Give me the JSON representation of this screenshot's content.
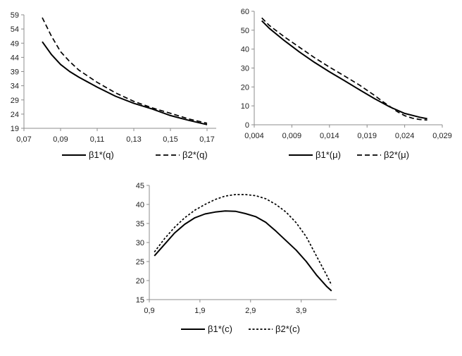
{
  "chart_data": [
    {
      "type": "line",
      "xlim": [
        0.07,
        0.175
      ],
      "ylim": [
        19,
        59
      ],
      "xticks": [
        {
          "value": 0.07,
          "label": "0,07"
        },
        {
          "value": 0.09,
          "label": "0,09"
        },
        {
          "value": 0.11,
          "label": "0,11"
        },
        {
          "value": 0.13,
          "label": "0,13"
        },
        {
          "value": 0.15,
          "label": "0,15"
        },
        {
          "value": 0.17,
          "label": "0,17"
        }
      ],
      "yticks": [
        {
          "value": 19,
          "label": "19"
        },
        {
          "value": 24,
          "label": "24"
        },
        {
          "value": 29,
          "label": "29"
        },
        {
          "value": 34,
          "label": "34"
        },
        {
          "value": 39,
          "label": "39"
        },
        {
          "value": 44,
          "label": "44"
        },
        {
          "value": 49,
          "label": "49"
        },
        {
          "value": 54,
          "label": "54"
        },
        {
          "value": 59,
          "label": "59"
        }
      ],
      "grid": false,
      "legend_position": "bottom",
      "series": [
        {
          "name": "β1*(q)",
          "style": "solid",
          "x": [
            0.08,
            0.085,
            0.09,
            0.095,
            0.1,
            0.11,
            0.12,
            0.13,
            0.14,
            0.15,
            0.16,
            0.17
          ],
          "y": [
            49.5,
            45,
            41.5,
            39,
            37,
            33.5,
            30.3,
            27.8,
            25.8,
            23.5,
            21.8,
            20.3
          ]
        },
        {
          "name": "β2*(q)",
          "style": "dashed",
          "x": [
            0.08,
            0.085,
            0.09,
            0.095,
            0.1,
            0.11,
            0.12,
            0.13,
            0.14,
            0.15,
            0.16,
            0.17
          ],
          "y": [
            58,
            51.5,
            46,
            42.5,
            39.5,
            35.2,
            31.5,
            28.5,
            26.2,
            24.3,
            22.3,
            20.8
          ]
        }
      ]
    },
    {
      "type": "line",
      "xlim": [
        0.004,
        0.029
      ],
      "ylim": [
        0,
        60
      ],
      "xticks": [
        {
          "value": 0.004,
          "label": "0,004"
        },
        {
          "value": 0.009,
          "label": "0,009"
        },
        {
          "value": 0.014,
          "label": "0,014"
        },
        {
          "value": 0.019,
          "label": "0,019"
        },
        {
          "value": 0.024,
          "label": "0,024"
        },
        {
          "value": 0.029,
          "label": "0,029"
        }
      ],
      "yticks": [
        {
          "value": 0,
          "label": "0"
        },
        {
          "value": 10,
          "label": "10"
        },
        {
          "value": 20,
          "label": "20"
        },
        {
          "value": 30,
          "label": "30"
        },
        {
          "value": 40,
          "label": "40"
        },
        {
          "value": 50,
          "label": "50"
        },
        {
          "value": 60,
          "label": "60"
        }
      ],
      "grid": false,
      "legend_position": "bottom",
      "series": [
        {
          "name": "β1*(μ)",
          "style": "solid",
          "x": [
            0.005,
            0.006,
            0.008,
            0.01,
            0.012,
            0.014,
            0.016,
            0.018,
            0.02,
            0.022,
            0.024,
            0.026,
            0.027
          ],
          "y": [
            55,
            51,
            44.5,
            38.5,
            33,
            28,
            23.3,
            18.5,
            13.8,
            9.5,
            6,
            4,
            3.2
          ]
        },
        {
          "name": "β2*(μ)",
          "style": "dashed",
          "x": [
            0.005,
            0.006,
            0.008,
            0.01,
            0.012,
            0.014,
            0.016,
            0.018,
            0.02,
            0.021,
            0.022,
            0.023,
            0.024,
            0.025,
            0.026,
            0.027
          ],
          "y": [
            56.5,
            52.5,
            46.5,
            41,
            35.5,
            30.5,
            25.8,
            21,
            15.5,
            12.5,
            9.8,
            7,
            4.8,
            3.5,
            2.8,
            2.5
          ]
        }
      ]
    },
    {
      "type": "line",
      "xlim": [
        0.9,
        4.6
      ],
      "ylim": [
        15,
        45
      ],
      "xticks": [
        {
          "value": 0.9,
          "label": "0,9"
        },
        {
          "value": 1.9,
          "label": "1,9"
        },
        {
          "value": 2.9,
          "label": "2,9"
        },
        {
          "value": 3.9,
          "label": "3,9"
        }
      ],
      "yticks": [
        {
          "value": 15,
          "label": "15"
        },
        {
          "value": 20,
          "label": "20"
        },
        {
          "value": 25,
          "label": "25"
        },
        {
          "value": 30,
          "label": "30"
        },
        {
          "value": 35,
          "label": "35"
        },
        {
          "value": 40,
          "label": "40"
        },
        {
          "value": 45,
          "label": "45"
        }
      ],
      "grid": false,
      "legend_position": "bottom",
      "series": [
        {
          "name": "β1*(c)",
          "style": "solid",
          "x": [
            1.0,
            1.2,
            1.4,
            1.6,
            1.8,
            2.0,
            2.2,
            2.4,
            2.6,
            2.8,
            3.0,
            3.2,
            3.4,
            3.6,
            3.8,
            4.0,
            4.2,
            4.4,
            4.5
          ],
          "y": [
            26.5,
            29.5,
            32.5,
            34.8,
            36.5,
            37.5,
            38,
            38.3,
            38.2,
            37.6,
            36.8,
            35.3,
            33,
            30.5,
            28,
            25,
            21.5,
            18.5,
            17.3
          ]
        },
        {
          "name": "β2*(c)",
          "style": "dotted",
          "x": [
            1.0,
            1.2,
            1.4,
            1.6,
            1.8,
            2.0,
            2.2,
            2.4,
            2.6,
            2.8,
            3.0,
            3.2,
            3.4,
            3.6,
            3.8,
            4.0,
            4.2,
            4.4,
            4.5
          ],
          "y": [
            27.5,
            31,
            34,
            36.5,
            38.5,
            40,
            41.3,
            42.2,
            42.6,
            42.6,
            42.3,
            41.5,
            40,
            38,
            35.2,
            31.5,
            26.5,
            21.5,
            18.8
          ]
        }
      ]
    }
  ]
}
